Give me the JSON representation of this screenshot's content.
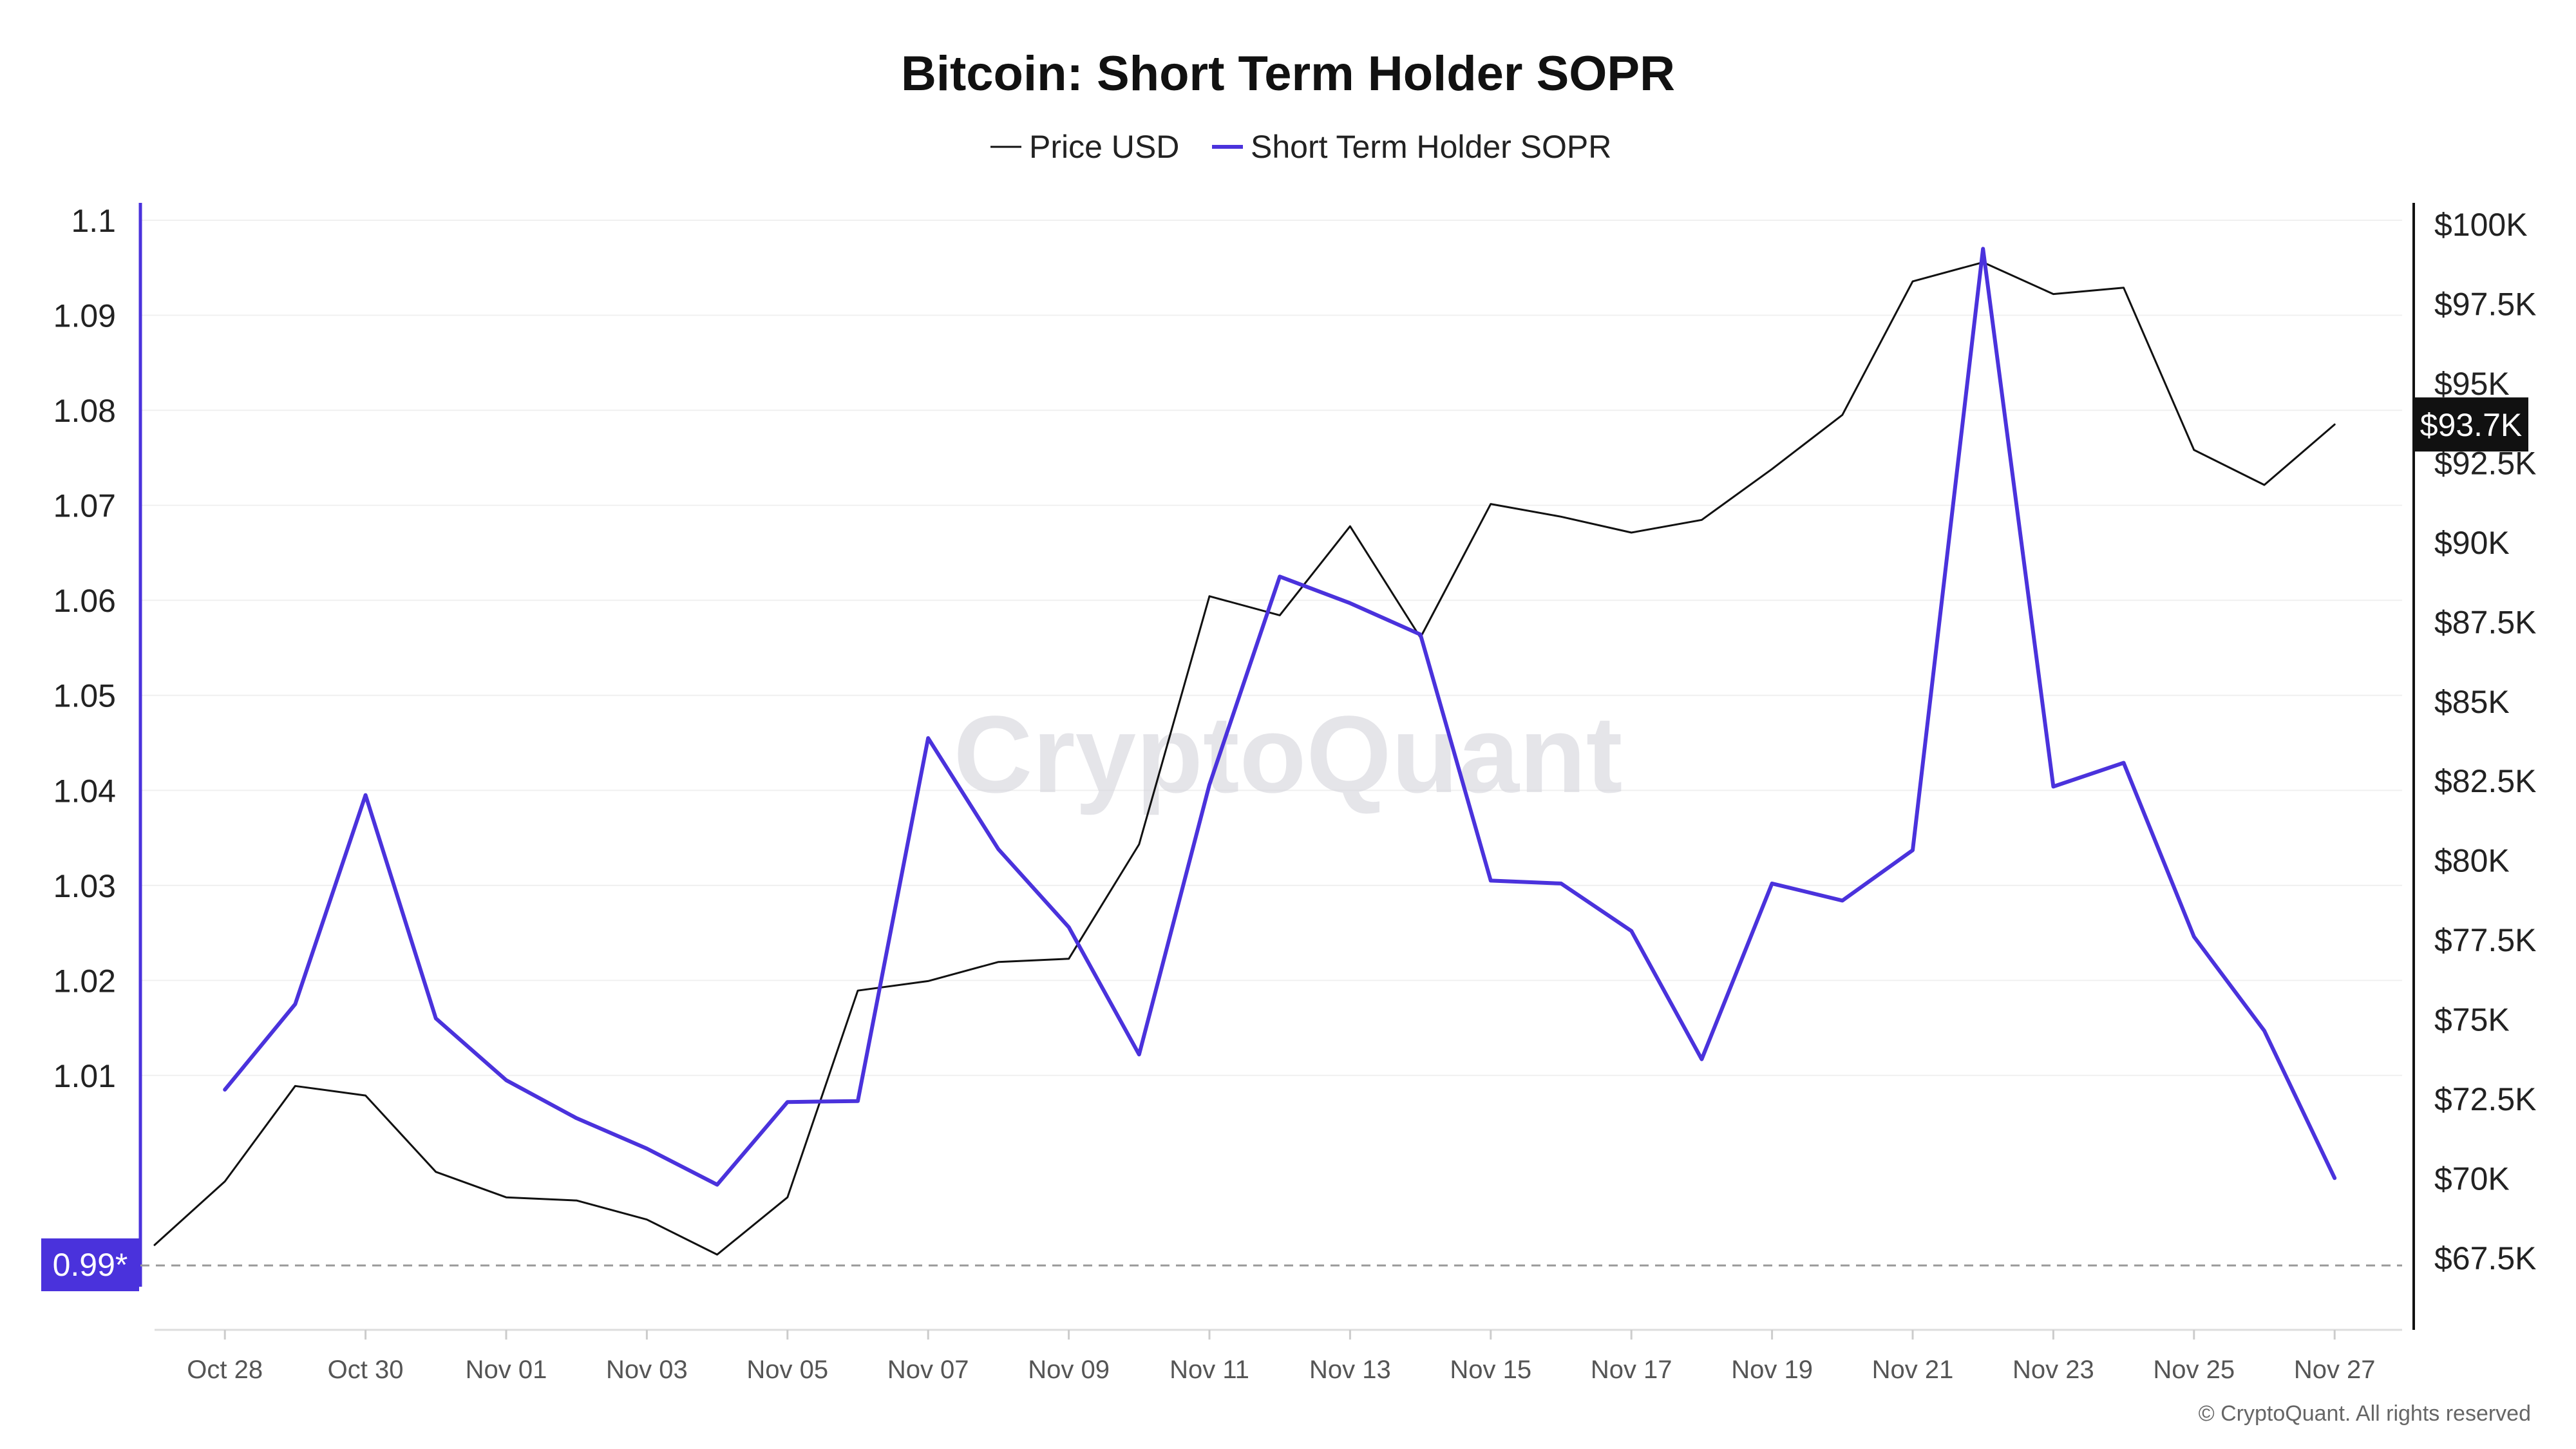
{
  "chart_data": {
    "type": "line",
    "title": "Bitcoin: Short Term Holder SOPR",
    "legend": {
      "placement": "top-center",
      "entries": [
        "Price USD",
        "Short Term Holder SOPR"
      ]
    },
    "x": [
      "Oct 27",
      "Oct 28",
      "Oct 29",
      "Oct 30",
      "Oct 31",
      "Nov 01",
      "Nov 02",
      "Nov 03",
      "Nov 04",
      "Nov 05",
      "Nov 06",
      "Nov 07",
      "Nov 08",
      "Nov 09",
      "Nov 10",
      "Nov 11",
      "Nov 12",
      "Nov 13",
      "Nov 14",
      "Nov 15",
      "Nov 16",
      "Nov 17",
      "Nov 18",
      "Nov 19",
      "Nov 20",
      "Nov 21",
      "Nov 22",
      "Nov 23",
      "Nov 24",
      "Nov 25",
      "Nov 26",
      "Nov 27"
    ],
    "x_tick_labels": [
      "Oct 28",
      "Oct 30",
      "Nov 01",
      "Nov 03",
      "Nov 05",
      "Nov 07",
      "Nov 09",
      "Nov 11",
      "Nov 13",
      "Nov 15",
      "Nov 17",
      "Nov 19",
      "Nov 21",
      "Nov 23",
      "Nov 25",
      "Nov 27"
    ],
    "series": [
      {
        "name": "Price USD",
        "axis": "right",
        "color": "#111111",
        "values": [
          67900,
          69900,
          72900,
          72600,
          70200,
          69400,
          69300,
          68700,
          67600,
          69400,
          75900,
          76200,
          76800,
          76900,
          80500,
          88300,
          87700,
          90500,
          87000,
          91200,
          90800,
          90300,
          90700,
          92300,
          94000,
          98200,
          98800,
          97800,
          98000,
          92900,
          91800,
          93700
        ]
      },
      {
        "name": "Short Term Holder SOPR",
        "axis": "left",
        "color": "#4a32dc",
        "values": [
          null,
          1.0085,
          1.0175,
          1.0395,
          1.016,
          1.0095,
          1.0055,
          1.0023,
          0.9985,
          1.0072,
          1.0073,
          1.0455,
          1.0338,
          1.0256,
          1.0122,
          1.0406,
          1.0625,
          1.0597,
          1.0564,
          1.0305,
          1.0302,
          1.0252,
          1.0117,
          1.0302,
          1.0284,
          1.0337,
          1.097,
          1.0404,
          1.0429,
          1.0246,
          1.0147,
          0.9992
        ]
      }
    ],
    "y_left": {
      "min": 0.99,
      "max": 1.1,
      "ticks": [
        "1.1",
        "1.09",
        "1.08",
        "1.07",
        "1.06",
        "1.05",
        "1.04",
        "1.03",
        "1.02",
        "1.01"
      ],
      "tick_values": [
        1.1,
        1.09,
        1.08,
        1.07,
        1.06,
        1.05,
        1.04,
        1.03,
        1.02,
        1.01
      ]
    },
    "y_right": {
      "min": 67500,
      "max": 100000,
      "ticks": [
        "$100K",
        "$97.5K",
        "$95K",
        "$92.5K",
        "$90K",
        "$87.5K",
        "$85K",
        "$82.5K",
        "$80K",
        "$77.5K",
        "$75K",
        "$72.5K",
        "$70K",
        "$67.5K"
      ],
      "tick_values": [
        100000,
        97500,
        95000,
        92500,
        90000,
        87500,
        85000,
        82500,
        80000,
        77500,
        75000,
        72500,
        70000,
        67500
      ]
    },
    "reference_line": {
      "value": 0.99,
      "label": "0.99*",
      "style": "dashed",
      "color": "#9a9a9a"
    },
    "current_price_badge": "$93.7K",
    "grid": true
  },
  "watermark": "CryptoQuant",
  "copyright": "© CryptoQuant. All rights reserved",
  "colors": {
    "sopr": "#4a32dc",
    "price": "#111111",
    "badge_left_bg": "#4a32dc",
    "badge_right_bg": "#111111",
    "grid": "#f0f0f0"
  }
}
